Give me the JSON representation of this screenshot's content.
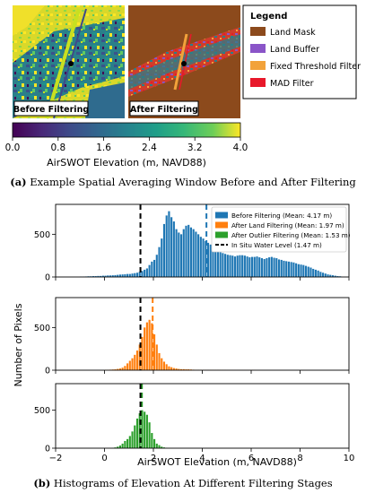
{
  "panel_a": {
    "before_label": "Before Filtering",
    "after_label": "After Filtering",
    "legend_title": "Legend",
    "legend_items": [
      {
        "label": "Land Mask",
        "color": "#8c4a1c"
      },
      {
        "label": "Land Buffer",
        "color": "#8a55c8"
      },
      {
        "label": "Fixed Threshold Filter",
        "color": "#f2a23a"
      },
      {
        "label": "MAD Filter",
        "color": "#e8182a"
      }
    ],
    "colorbar": {
      "ticks": [
        "0.0",
        "0.8",
        "1.6",
        "2.4",
        "3.2",
        "4.0"
      ],
      "min": 0,
      "max": 4,
      "label": "AirSWOT Elevation (m, NAVD88)"
    },
    "caption_letter": "(a)",
    "caption_text": " Example Spatial Averaging Window Before and After Filtering"
  },
  "chart_data": {
    "type": "bar",
    "subplots": 3,
    "shared_x": true,
    "xlim": [
      -2,
      10
    ],
    "xticks": [
      "−2",
      "0",
      "2",
      "4",
      "6",
      "8",
      "10"
    ],
    "xtick_values": [
      -2,
      0,
      2,
      4,
      6,
      8,
      10
    ],
    "xlabel": "AirSWOT Elevation (m, NAVD88)",
    "ylabel": "Number of Pixels",
    "ylim": [
      0,
      850
    ],
    "yticks": [
      "0",
      "500"
    ],
    "ytick_values": [
      0,
      500
    ],
    "bin_width": 0.1,
    "legend_position": "top-right",
    "legend": [
      {
        "label": "Before Filtering (Mean: 4.17 m)",
        "color": "#1f77b4",
        "kind": "patch"
      },
      {
        "label": "After Land Filtering (Mean: 1.97 m)",
        "color": "#ff7f0e",
        "kind": "patch"
      },
      {
        "label": "After Outlier Filtering (Mean: 1.53 m)",
        "color": "#2ca02c",
        "kind": "patch"
      },
      {
        "label": "In Situ Water Level (1.47 m)",
        "color": "#000000",
        "kind": "dashed-line"
      }
    ],
    "reference_line": {
      "value": 1.47,
      "color": "#000000"
    },
    "series": [
      {
        "name": "Before Filtering",
        "mean": 4.17,
        "color": "#1f77b4",
        "bin_start": -1.0,
        "counts": [
          5,
          5,
          6,
          8,
          8,
          10,
          10,
          12,
          12,
          15,
          15,
          18,
          18,
          20,
          22,
          25,
          28,
          30,
          32,
          35,
          35,
          40,
          45,
          50,
          60,
          70,
          85,
          100,
          140,
          180,
          200,
          260,
          350,
          450,
          620,
          720,
          770,
          700,
          650,
          560,
          520,
          500,
          560,
          600,
          610,
          580,
          560,
          530,
          500,
          470,
          450,
          420,
          400,
          380,
          350,
          330,
          300,
          290,
          280,
          270,
          260,
          255,
          250,
          240,
          250,
          255,
          255,
          250,
          240,
          230,
          235,
          235,
          240,
          230,
          220,
          210,
          220,
          230,
          235,
          225,
          220,
          205,
          200,
          190,
          185,
          180,
          175,
          170,
          160,
          150,
          145,
          140,
          130,
          120,
          110,
          95,
          85,
          75,
          60,
          50,
          40,
          30,
          25,
          20,
          15,
          10,
          8
        ]
      },
      {
        "name": "After Land Filtering",
        "mean": 1.97,
        "color": "#ff7f0e",
        "bin_start": 0.0,
        "counts": [
          4,
          5,
          6,
          8,
          10,
          15,
          20,
          30,
          50,
          80,
          110,
          140,
          180,
          230,
          300,
          390,
          500,
          560,
          590,
          550,
          420,
          300,
          200,
          140,
          100,
          70,
          45,
          35,
          25,
          20,
          15,
          12,
          12,
          10,
          10,
          8,
          6,
          5,
          5,
          4,
          3,
          3,
          3,
          3,
          3,
          3,
          3,
          3,
          3,
          3,
          2,
          2,
          2,
          2,
          2,
          2,
          2,
          2,
          2,
          2,
          2,
          2
        ]
      },
      {
        "name": "After Outlier Filtering",
        "mean": 1.53,
        "color": "#2ca02c",
        "bin_start": 0.3,
        "counts": [
          4,
          10,
          20,
          35,
          60,
          95,
          120,
          160,
          220,
          300,
          390,
          460,
          500,
          480,
          440,
          340,
          200,
          120,
          60,
          40,
          20,
          10,
          5,
          3
        ]
      }
    ]
  },
  "caption_b_letter": "(b)",
  "caption_b_text": " Histograms of Elevation At Different Filtering Stages"
}
